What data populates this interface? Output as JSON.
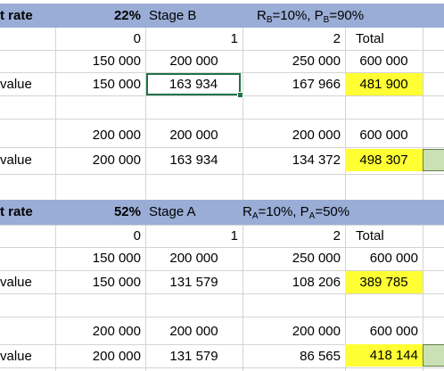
{
  "block_b": {
    "label": "t rate",
    "rate": "22%",
    "stage": "Stage B",
    "params": {
      "r": "R",
      "r_sub": "B",
      "r_val": "=10%, P",
      "p_sub": "B",
      "p_val": "=90%"
    },
    "period_headers": [
      "0",
      "1",
      "2",
      "Total"
    ],
    "row1": [
      "150 000",
      "200 000",
      "250 000",
      "600 000"
    ],
    "row2_label": "value",
    "row2": [
      "150 000",
      "163 934",
      "167 966",
      "481 900"
    ],
    "row3": [
      "200 000",
      "200 000",
      "200 000",
      "600 000"
    ],
    "row4_label": "value",
    "row4": [
      "200 000",
      "163 934",
      "134 372",
      "498 307"
    ]
  },
  "block_a": {
    "label": "t rate",
    "rate": "52%",
    "stage": "Stage A",
    "params": {
      "r": "R",
      "r_sub": "A",
      "r_val": "=10%, P",
      "p_sub": "A",
      "p_val": "=50%"
    },
    "period_headers": [
      "0",
      "1",
      "2",
      "Total"
    ],
    "row1": [
      "150 000",
      "200 000",
      "250 000",
      "600 000"
    ],
    "row2_label": "value",
    "row2": [
      "150 000",
      "131 579",
      "108 206",
      "389 785"
    ],
    "row3": [
      "200 000",
      "200 000",
      "200 000",
      "600 000"
    ],
    "row4_label": "value",
    "row4": [
      "200 000",
      "131 579",
      "86 565",
      "418 144"
    ]
  },
  "colors": {
    "header": "#9aadd6",
    "highlight": "#ffff33",
    "green_cell": "#c9e1b4",
    "selection": "#217346"
  }
}
